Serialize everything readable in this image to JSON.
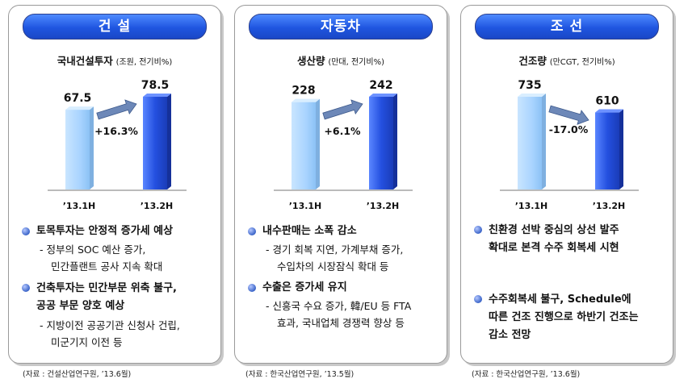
{
  "panels": [
    {
      "title": "건 설",
      "subtitle_strong": "국내건설투자",
      "subtitle_unit": "(조원, 전기비%)",
      "growth_label": "+16.3%",
      "trend": "up",
      "bullets": [
        {
          "head": [
            "토목투자는 안정적 증가세 예상"
          ],
          "subs": [
            "- 정부의 SOC 예산 증가,",
            "민간플랜트 공사 지속 확대"
          ]
        },
        {
          "head": [
            "건축투자는 민간부문 위축 불구,",
            "공공 부문 양호 예상"
          ],
          "subs": [
            "- 지방이전 공공기관 신청사 건립,",
            "미군기지 이전 등"
          ]
        }
      ],
      "source": "(자료 : 건설산업연구원, ’13.6월)"
    },
    {
      "title": "자동차",
      "subtitle_strong": "생산량",
      "subtitle_unit": "(만대, 전기비%)",
      "growth_label": "+6.1%",
      "trend": "up",
      "bullets": [
        {
          "head": [
            "내수판매는 소폭 감소"
          ],
          "subs": [
            "- 경기 회복 지연, 가계부채 증가,",
            "수입차의 시장잠식 확대 등"
          ]
        },
        {
          "head": [
            "수출은 증가세 유지"
          ],
          "subs": [
            "- 신흥국 수요 증가, 韓/EU 등 FTA",
            "효과, 국내업체 경쟁력 향상 등"
          ]
        }
      ],
      "source": "(자료 : 한국산업연구원, ’13.5월)"
    },
    {
      "title": "조 선",
      "subtitle_strong": "건조량",
      "subtitle_unit": "(만CGT, 전기비%)",
      "growth_label": "-17.0%",
      "trend": "down",
      "bullets": [
        {
          "head": [
            "친환경 선박 중심의 상선 발주",
            "확대로 본격 수주 회복세 시현"
          ],
          "subs": []
        },
        {
          "head": [
            "수주회복세 불구, Schedule에",
            "따른 건조 진행으로 하반기 건조는",
            "감소 전망"
          ],
          "subs": []
        }
      ],
      "source": "(자료 : 한국산업연구원, ’13.6월)"
    }
  ],
  "chart_data": [
    {
      "type": "bar",
      "title": "국내건설투자 (조원, 전기비%)",
      "categories": [
        "’13.1H",
        "’13.2H"
      ],
      "values": [
        67.5,
        78.5
      ],
      "change": "+16.3%"
    },
    {
      "type": "bar",
      "title": "생산량 (만대, 전기비%)",
      "categories": [
        "’13.1H",
        "’13.2H"
      ],
      "values": [
        228,
        242
      ],
      "change": "+6.1%"
    },
    {
      "type": "bar",
      "title": "건조량 (만CGT, 전기비%)",
      "categories": [
        "’13.1H",
        "’13.2H"
      ],
      "values": [
        735,
        610
      ],
      "change": "-17.0%"
    }
  ],
  "colors": {
    "bar_light": "#a9d4ff",
    "bar_dark": "#2450e0",
    "pill": "#1f55e0",
    "bullet": "#3a64c8"
  }
}
